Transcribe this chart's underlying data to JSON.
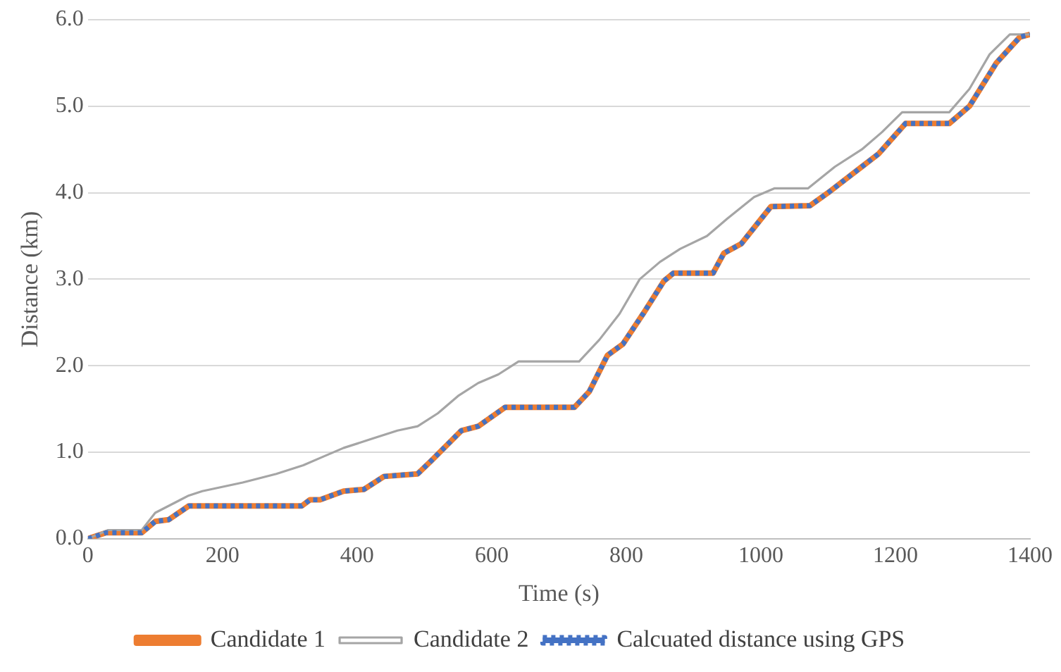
{
  "chart_data": {
    "type": "line",
    "xlabel": "Time (s)",
    "ylabel": "Distance (km)",
    "xlim": [
      0,
      1400
    ],
    "xticks": [
      0,
      200,
      400,
      600,
      800,
      1000,
      1200,
      1400
    ],
    "ylim": [
      0,
      6
    ],
    "yticks": [
      {
        "value": 0,
        "label": "0.0"
      },
      {
        "value": 1,
        "label": "1.0"
      },
      {
        "value": 2,
        "label": "2.0"
      },
      {
        "value": 3,
        "label": "3.0"
      },
      {
        "value": 4,
        "label": "4.0"
      },
      {
        "value": 5,
        "label": "5.0"
      },
      {
        "value": 6,
        "label": "6.0"
      }
    ],
    "grid": "y",
    "legend": "bottom",
    "marker": "none",
    "series": [
      {
        "name": "Candidate 1",
        "color": "#ed7d31",
        "line_style": "solid",
        "x": [
          0,
          27,
          80,
          100,
          120,
          150,
          318,
          330,
          345,
          380,
          410,
          440,
          490,
          510,
          555,
          580,
          620,
          723,
          745,
          772,
          795,
          825,
          856,
          870,
          929,
          945,
          971,
          1015,
          1073,
          1100,
          1150,
          1175,
          1215,
          1280,
          1310,
          1350,
          1385,
          1400
        ],
        "values": [
          0,
          0.07,
          0.07,
          0.2,
          0.22,
          0.38,
          0.38,
          0.45,
          0.45,
          0.55,
          0.57,
          0.72,
          0.75,
          0.9,
          1.25,
          1.3,
          1.52,
          1.52,
          1.7,
          2.12,
          2.25,
          2.6,
          2.98,
          3.07,
          3.07,
          3.3,
          3.41,
          3.84,
          3.85,
          4.0,
          4.3,
          4.45,
          4.8,
          4.8,
          5.0,
          5.5,
          5.8,
          5.83
        ]
      },
      {
        "name": "Candidate 2",
        "color": "#a5a5a5",
        "line_style": "solid",
        "x": [
          0,
          30,
          80,
          100,
          150,
          170,
          230,
          280,
          320,
          350,
          380,
          420,
          460,
          490,
          520,
          550,
          580,
          610,
          640,
          730,
          760,
          790,
          820,
          850,
          880,
          920,
          950,
          990,
          1020,
          1070,
          1110,
          1150,
          1180,
          1210,
          1280,
          1310,
          1340,
          1370,
          1400
        ],
        "values": [
          0,
          0.1,
          0.1,
          0.3,
          0.5,
          0.55,
          0.65,
          0.75,
          0.85,
          0.95,
          1.05,
          1.15,
          1.25,
          1.3,
          1.45,
          1.65,
          1.8,
          1.9,
          2.05,
          2.05,
          2.3,
          2.6,
          3.0,
          3.2,
          3.35,
          3.5,
          3.7,
          3.95,
          4.05,
          4.05,
          4.3,
          4.5,
          4.7,
          4.93,
          4.93,
          5.2,
          5.6,
          5.83,
          5.83
        ]
      },
      {
        "name": "Calcuated distance using GPS",
        "color": "#4472c4",
        "line_style": "dotted",
        "x": [
          0,
          27,
          80,
          100,
          120,
          150,
          318,
          330,
          345,
          380,
          410,
          440,
          490,
          510,
          555,
          580,
          620,
          723,
          745,
          772,
          795,
          825,
          856,
          870,
          929,
          945,
          971,
          1015,
          1073,
          1100,
          1150,
          1175,
          1215,
          1280,
          1310,
          1350,
          1385,
          1400
        ],
        "values": [
          0,
          0.07,
          0.07,
          0.2,
          0.22,
          0.38,
          0.38,
          0.45,
          0.45,
          0.55,
          0.57,
          0.72,
          0.75,
          0.9,
          1.25,
          1.3,
          1.52,
          1.52,
          1.7,
          2.12,
          2.25,
          2.6,
          2.98,
          3.07,
          3.07,
          3.3,
          3.41,
          3.84,
          3.85,
          4.0,
          4.3,
          4.45,
          4.8,
          4.8,
          5.0,
          5.5,
          5.8,
          5.83
        ]
      }
    ]
  }
}
